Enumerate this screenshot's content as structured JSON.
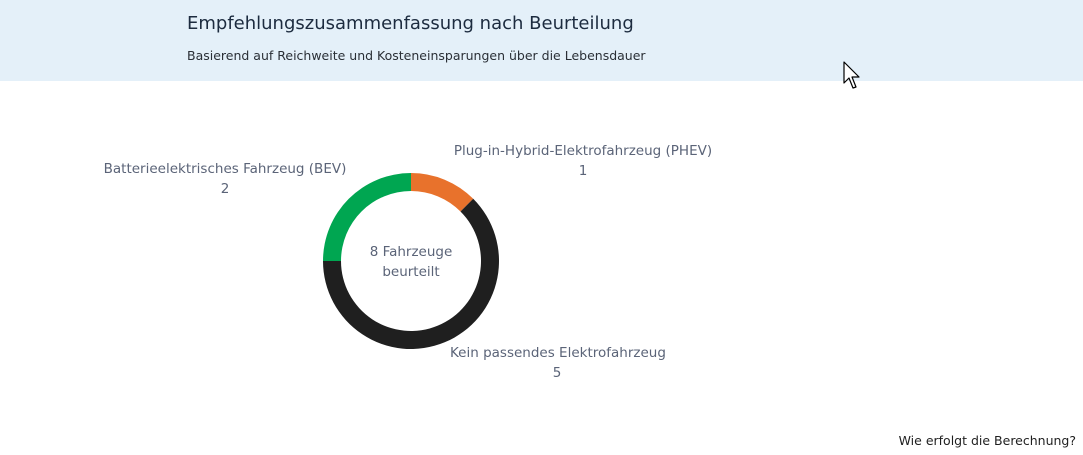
{
  "header": {
    "title": "Empfehlungszusammenfassung nach Beurteilung",
    "subtitle": "Basierend auf Reichweite und Kosteneinsparungen über die Lebensdauer"
  },
  "chart_data": {
    "type": "pie",
    "title": "",
    "center_label": "8 Fahrzeuge beurteilt",
    "slices": [
      {
        "label": "Plug-in-Hybrid-Elektrofahrzeug (PHEV)",
        "value": 1,
        "color": "#e8722c"
      },
      {
        "label": "Kein passendes Elektrofahrzeug",
        "value": 5,
        "color": "#1f1f1f"
      },
      {
        "label": "Batterieelektrisches Fahrzeug (BEV)",
        "value": 2,
        "color": "#00a651"
      }
    ]
  },
  "footer": {
    "help_link": "Wie erfolgt die Berechnung?"
  }
}
